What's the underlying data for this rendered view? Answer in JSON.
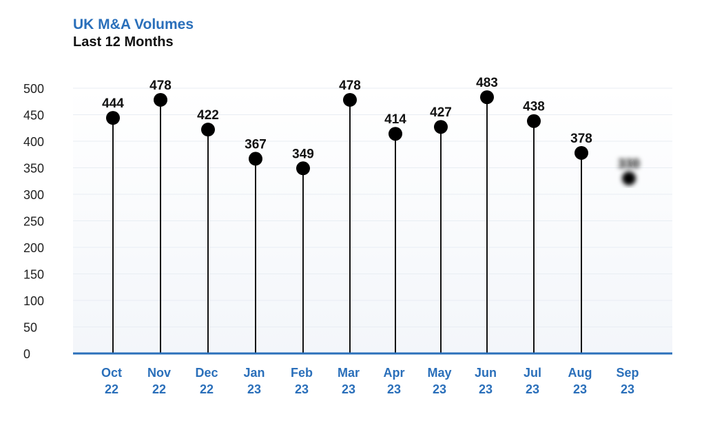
{
  "chart_data": {
    "type": "lollipop",
    "title": "UK M&A Volumes",
    "subtitle": "Last 12 Months",
    "categories": [
      [
        "Oct",
        "22"
      ],
      [
        "Nov",
        "22"
      ],
      [
        "Dec",
        "22"
      ],
      [
        "Jan",
        "23"
      ],
      [
        "Feb",
        "23"
      ],
      [
        "Mar",
        "23"
      ],
      [
        "Apr",
        "23"
      ],
      [
        "May",
        "23"
      ],
      [
        "Jun",
        "23"
      ],
      [
        "Jul",
        "23"
      ],
      [
        "Aug",
        "23"
      ],
      [
        "Sep",
        "23"
      ]
    ],
    "values": [
      444,
      478,
      422,
      367,
      349,
      478,
      414,
      427,
      483,
      438,
      378,
      330
    ],
    "data_labels": [
      "444",
      "478",
      "422",
      "367",
      "349",
      "478",
      "414",
      "427",
      "483",
      "438",
      "378",
      "330"
    ],
    "blurred_last_point": true,
    "ylim": [
      0,
      500
    ],
    "yticks": [
      0,
      50,
      100,
      150,
      200,
      250,
      300,
      350,
      400,
      450,
      500
    ],
    "grid": true,
    "colors": {
      "title": "#2a6fba",
      "subtitle": "#111111",
      "axis": "#2a6fba",
      "xtick": "#2a6fba",
      "stem": "#111111",
      "marker": "#000000",
      "grid": "#e8edf3",
      "ytick": "#222222"
    }
  }
}
